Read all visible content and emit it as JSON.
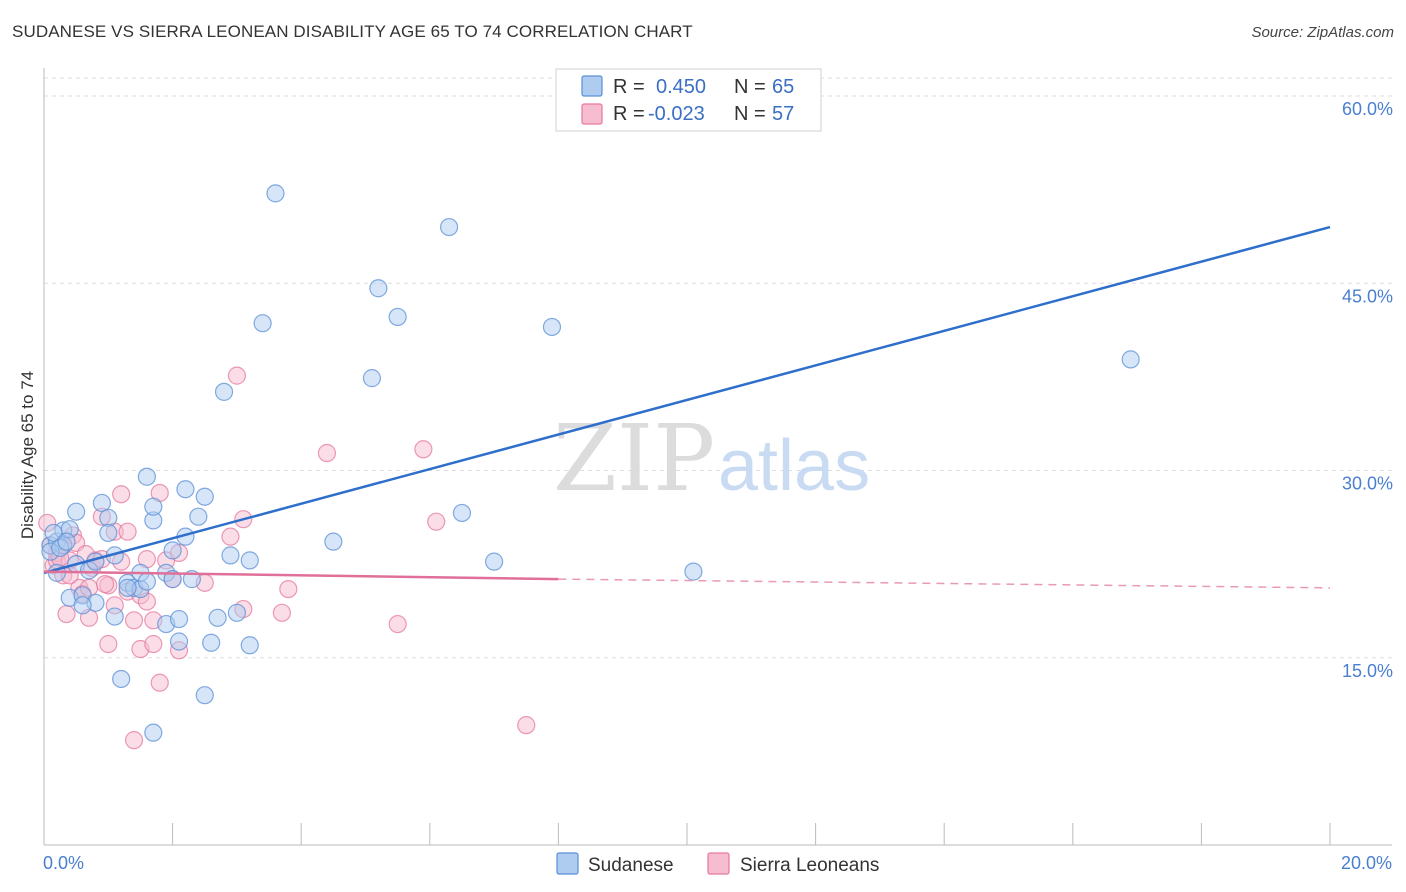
{
  "title": "SUDANESE VS SIERRA LEONEAN DISABILITY AGE 65 TO 74 CORRELATION CHART",
  "source": "Source: ZipAtlas.com",
  "watermark": {
    "zip": "ZIP",
    "atlas": "atlas"
  },
  "colors": {
    "blue": "#5b8fd6",
    "blue_fill": "#aecbf0",
    "pink": "#e678a0",
    "pink_fill": "#f6bcd0",
    "axis_text": "#4a7fd0"
  },
  "legend": {
    "rows": [
      {
        "r_label": "R =",
        "r_value": "0.450",
        "n_label": "N =",
        "n_value": "65"
      },
      {
        "r_label": "R =",
        "r_value": "-0.023",
        "n_label": "N =",
        "n_value": "57"
      }
    ]
  },
  "chart_data": {
    "type": "scatter",
    "title": "SUDANESE VS SIERRA LEONEAN DISABILITY AGE 65 TO 74 CORRELATION CHART",
    "xlabel": "",
    "ylabel": "Disability Age 65 to 74",
    "xlim": [
      0,
      20
    ],
    "ylim": [
      0,
      63
    ],
    "x_tick_labels": [
      "0.0%",
      "20.0%"
    ],
    "y_ticks": [
      15,
      30,
      45,
      60
    ],
    "y_tick_labels": [
      "15.0%",
      "30.0%",
      "45.0%",
      "60.0%"
    ],
    "series": [
      {
        "name": "Sudanese",
        "trend": {
          "x": [
            0,
            20
          ],
          "y": [
            21.8,
            49.5
          ]
        },
        "points": [
          [
            0.1,
            24.0
          ],
          [
            0.2,
            24.3
          ],
          [
            0.2,
            21.8
          ],
          [
            0.3,
            25.2
          ],
          [
            0.3,
            24.0
          ],
          [
            0.4,
            25.3
          ],
          [
            0.4,
            19.8
          ],
          [
            0.5,
            22.5
          ],
          [
            0.5,
            26.7
          ],
          [
            0.6,
            20.0
          ],
          [
            0.7,
            22.0
          ],
          [
            0.8,
            19.4
          ],
          [
            0.8,
            22.7
          ],
          [
            0.9,
            27.4
          ],
          [
            1.0,
            26.2
          ],
          [
            1.0,
            25.0
          ],
          [
            1.1,
            23.2
          ],
          [
            1.1,
            18.3
          ],
          [
            1.2,
            13.3
          ],
          [
            1.3,
            21.0
          ],
          [
            1.4,
            20.6
          ],
          [
            1.5,
            20.5
          ],
          [
            1.5,
            21.8
          ],
          [
            1.6,
            29.5
          ],
          [
            1.7,
            9.0
          ],
          [
            1.7,
            26.0
          ],
          [
            1.7,
            27.1
          ],
          [
            1.9,
            21.8
          ],
          [
            1.9,
            17.7
          ],
          [
            2.0,
            21.3
          ],
          [
            2.0,
            23.6
          ],
          [
            2.1,
            18.1
          ],
          [
            2.1,
            16.3
          ],
          [
            2.2,
            24.7
          ],
          [
            2.2,
            28.5
          ],
          [
            2.3,
            21.3
          ],
          [
            2.4,
            26.3
          ],
          [
            2.5,
            27.9
          ],
          [
            2.5,
            12.0
          ],
          [
            2.6,
            16.2
          ],
          [
            2.7,
            18.2
          ],
          [
            2.8,
            36.3
          ],
          [
            2.9,
            23.2
          ],
          [
            3.0,
            18.6
          ],
          [
            3.2,
            22.8
          ],
          [
            3.2,
            16.0
          ],
          [
            3.4,
            41.8
          ],
          [
            3.6,
            52.2
          ],
          [
            4.5,
            24.3
          ],
          [
            5.1,
            37.4
          ],
          [
            5.2,
            44.6
          ],
          [
            5.5,
            42.3
          ],
          [
            6.3,
            49.5
          ],
          [
            6.5,
            26.6
          ],
          [
            7.0,
            22.7
          ],
          [
            7.9,
            41.5
          ],
          [
            10.1,
            21.9
          ],
          [
            16.9,
            38.9
          ],
          [
            0.1,
            23.5
          ],
          [
            0.15,
            25.0
          ],
          [
            0.25,
            23.8
          ],
          [
            0.35,
            24.3
          ],
          [
            0.6,
            19.2
          ],
          [
            1.3,
            20.6
          ],
          [
            1.6,
            21.1
          ]
        ]
      },
      {
        "name": "Sierra Leoneans",
        "trend": {
          "x": [
            0,
            8
          ],
          "y": [
            21.9,
            21.3
          ]
        },
        "trend_dashed": {
          "x": [
            8,
            20
          ],
          "y": [
            21.3,
            20.6
          ]
        },
        "points": [
          [
            0.05,
            25.8
          ],
          [
            0.1,
            24.0
          ],
          [
            0.15,
            22.4
          ],
          [
            0.2,
            23.4
          ],
          [
            0.2,
            22.8
          ],
          [
            0.3,
            21.6
          ],
          [
            0.3,
            24.1
          ],
          [
            0.35,
            18.5
          ],
          [
            0.4,
            22.8
          ],
          [
            0.45,
            24.8
          ],
          [
            0.5,
            24.2
          ],
          [
            0.55,
            20.6
          ],
          [
            0.6,
            20.1
          ],
          [
            0.7,
            18.2
          ],
          [
            0.7,
            20.6
          ],
          [
            0.75,
            22.2
          ],
          [
            0.8,
            22.8
          ],
          [
            0.9,
            26.3
          ],
          [
            0.9,
            22.9
          ],
          [
            1.0,
            16.1
          ],
          [
            1.0,
            20.8
          ],
          [
            1.1,
            19.2
          ],
          [
            1.1,
            25.1
          ],
          [
            1.2,
            22.7
          ],
          [
            1.2,
            28.1
          ],
          [
            1.3,
            25.1
          ],
          [
            1.3,
            20.3
          ],
          [
            1.4,
            18.0
          ],
          [
            1.4,
            8.4
          ],
          [
            1.5,
            20.0
          ],
          [
            1.5,
            15.7
          ],
          [
            1.6,
            19.5
          ],
          [
            1.6,
            22.9
          ],
          [
            1.7,
            18.0
          ],
          [
            1.7,
            16.1
          ],
          [
            1.8,
            13.0
          ],
          [
            1.8,
            28.2
          ],
          [
            1.9,
            22.8
          ],
          [
            2.0,
            21.3
          ],
          [
            2.1,
            15.6
          ],
          [
            2.1,
            23.4
          ],
          [
            2.5,
            21.0
          ],
          [
            2.9,
            24.7
          ],
          [
            3.0,
            37.6
          ],
          [
            3.1,
            26.1
          ],
          [
            3.1,
            18.9
          ],
          [
            3.7,
            18.6
          ],
          [
            3.8,
            20.5
          ],
          [
            4.4,
            31.4
          ],
          [
            5.5,
            17.7
          ],
          [
            5.9,
            31.7
          ],
          [
            6.1,
            25.9
          ],
          [
            7.5,
            9.6
          ],
          [
            0.25,
            23.0
          ],
          [
            0.4,
            21.6
          ],
          [
            0.65,
            23.3
          ],
          [
            0.95,
            20.9
          ]
        ]
      }
    ]
  }
}
